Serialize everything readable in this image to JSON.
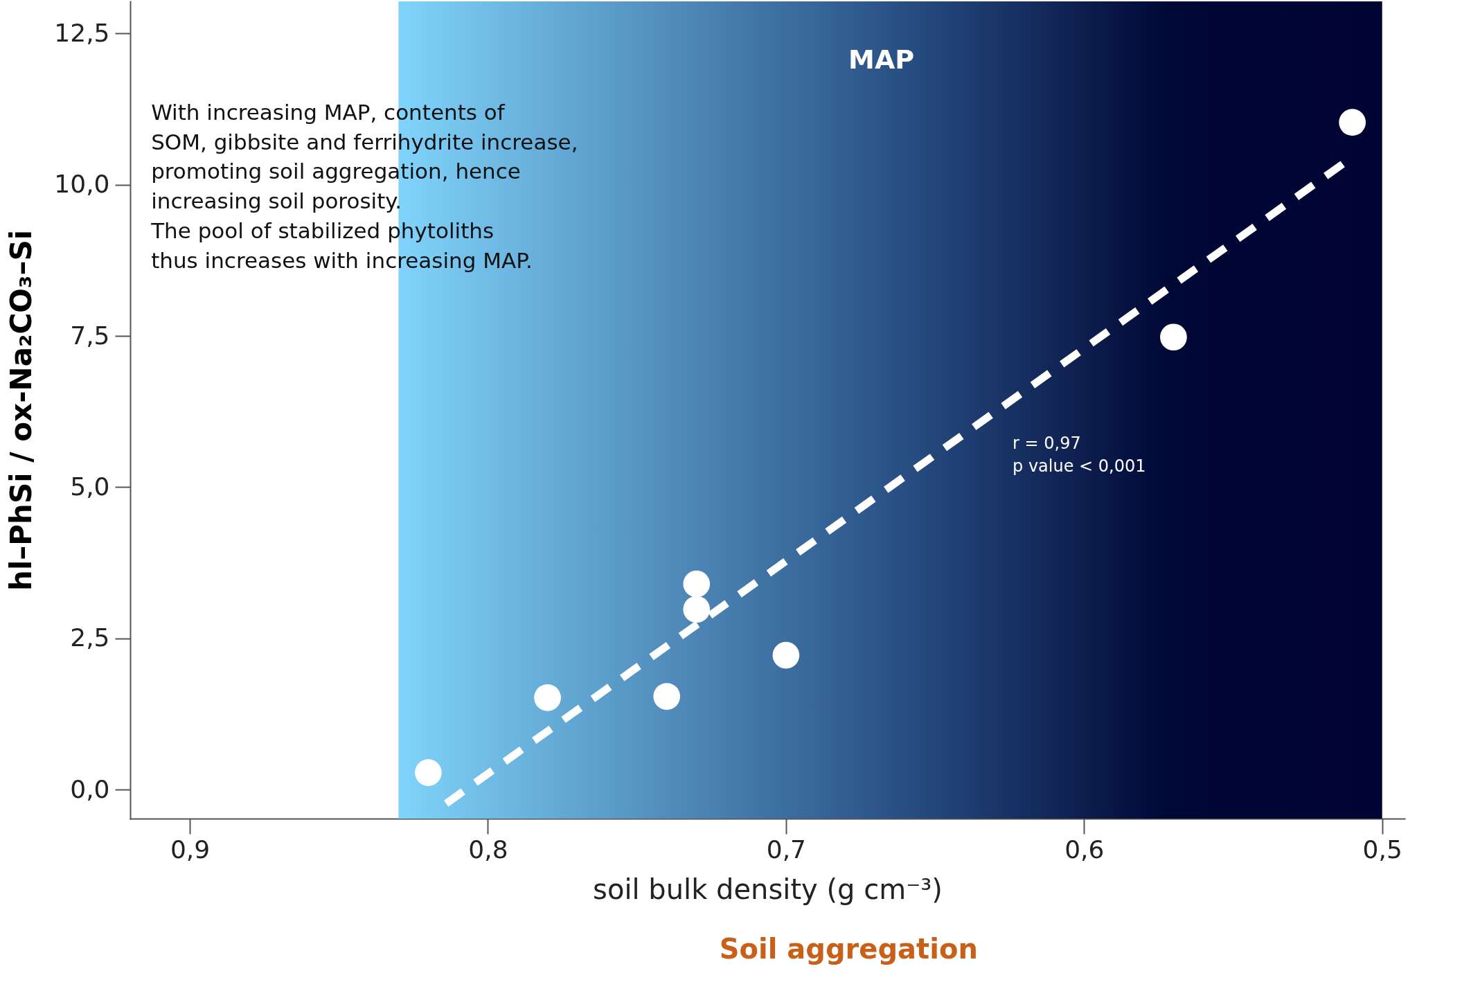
{
  "chart_data": {
    "type": "scatter",
    "xlabel": "soil bulk density (g cm⁻³)",
    "ylabel": "hl–PhSi / ox-Na₂CO₃–Si",
    "xlim": [
      0.92,
      0.4925
    ],
    "ylim": [
      -0.48,
      13.03
    ],
    "xticks": [
      {
        "value": 0.9,
        "label": "0,9"
      },
      {
        "value": 0.8,
        "label": "0,8"
      },
      {
        "value": 0.7,
        "label": "0,7"
      },
      {
        "value": 0.6,
        "label": "0,6"
      },
      {
        "value": 0.5,
        "label": "0,5"
      }
    ],
    "yticks": [
      {
        "value": 0,
        "label": "0,0"
      },
      {
        "value": 2.5,
        "label": "2,5"
      },
      {
        "value": 5,
        "label": "5,0"
      },
      {
        "value": 7.5,
        "label": "7,5"
      },
      {
        "value": 10,
        "label": "10,0"
      },
      {
        "value": 12.5,
        "label": "12,5"
      }
    ],
    "grid": false,
    "series": [
      {
        "marker": "circle",
        "color": "#ffffff",
        "x": [
          0.82,
          0.78,
          0.74,
          0.73,
          0.73,
          0.7,
          0.57,
          0.51
        ],
        "values": [
          0.28,
          1.52,
          1.54,
          3.4,
          2.98,
          2.22,
          7.48,
          11.03
        ]
      },
      {
        "type": "line",
        "line_style": "dashed",
        "color": "#ffffff",
        "x": [
          0.814,
          0.511
        ],
        "values": [
          -0.23,
          10.42
        ]
      }
    ],
    "bands": [
      {
        "axis": "x",
        "from": 0.83,
        "to": 0.5,
        "color": "#80d4fc"
      }
    ],
    "annotations": [
      "With increasing MAP, contents of\nSOM, gibbsite and ferrihydrite increase,\npromoting soil aggregation, hence\nincreasing soil porosity.\n\nThe pool of stabilized phytoliths\nthus increases with increasing MAP.",
      "r = 0,97\np value < 0,001",
      "MAP",
      "Soil aggregation"
    ]
  }
}
